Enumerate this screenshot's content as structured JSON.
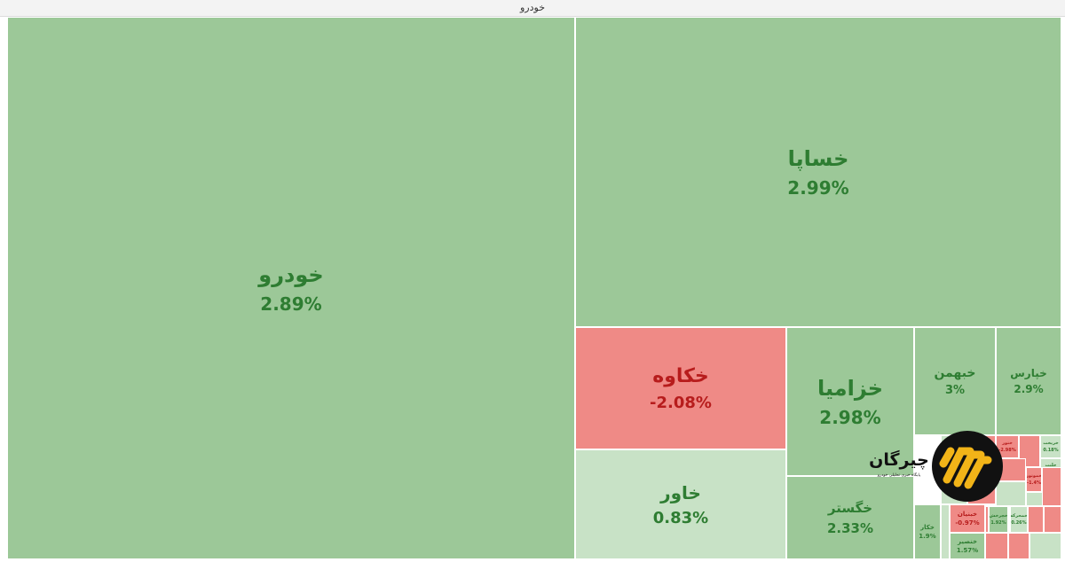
{
  "header": {
    "title": "خودرو"
  },
  "chart_data": {
    "type": "treemap",
    "title": "خودرو",
    "colors": {
      "positive": "#9cc898",
      "positive_light": "#c8e2c6",
      "negative": "#ef8a86",
      "negative_dark": "#e05d5d",
      "positive_text": "#2e7d32",
      "negative_text": "#b71c1c"
    },
    "cells": [
      {
        "name": "خودرو",
        "change": "2.89%",
        "value": 2.89
      },
      {
        "name": "خساپا",
        "change": "2.99%",
        "value": 2.99
      },
      {
        "name": "خکاوه",
        "change": "-2.08%",
        "value": -2.08
      },
      {
        "name": "خاور",
        "change": "0.83%",
        "value": 0.83
      },
      {
        "name": "خزامیا",
        "change": "2.98%",
        "value": 2.98
      },
      {
        "name": "خبهمن",
        "change": "3%",
        "value": 3
      },
      {
        "name": "خپارس",
        "change": "2.9%",
        "value": 2.9
      },
      {
        "name": "خگستر",
        "change": "2.33%",
        "value": 2.33
      },
      {
        "name": "خکار",
        "change": "1.9%",
        "value": 1.9
      },
      {
        "name": "خبنیان",
        "change": "-0.97%",
        "value": -0.97
      },
      {
        "name": "خنصیر",
        "change": "1.57%",
        "value": 1.57
      },
      {
        "name": "خریخت",
        "change": "0.18%",
        "value": 0.18
      },
      {
        "name": "ختور",
        "change": "-2.98%",
        "value": -2.98
      },
      {
        "name": "خلنت",
        "change": "0.21%",
        "value": 0.21
      },
      {
        "name": "خموتور",
        "change": "-1.4%",
        "value": -1.4
      },
      {
        "name": "خمحرکه",
        "change": "0.26%",
        "value": 0.26
      },
      {
        "name": "خچرخش",
        "change": "1.92%",
        "value": 1.92
      }
    ]
  },
  "watermark": {
    "line1": "چیرگان",
    "line2": "پایگاه خبری تحلیلی خودرو"
  }
}
